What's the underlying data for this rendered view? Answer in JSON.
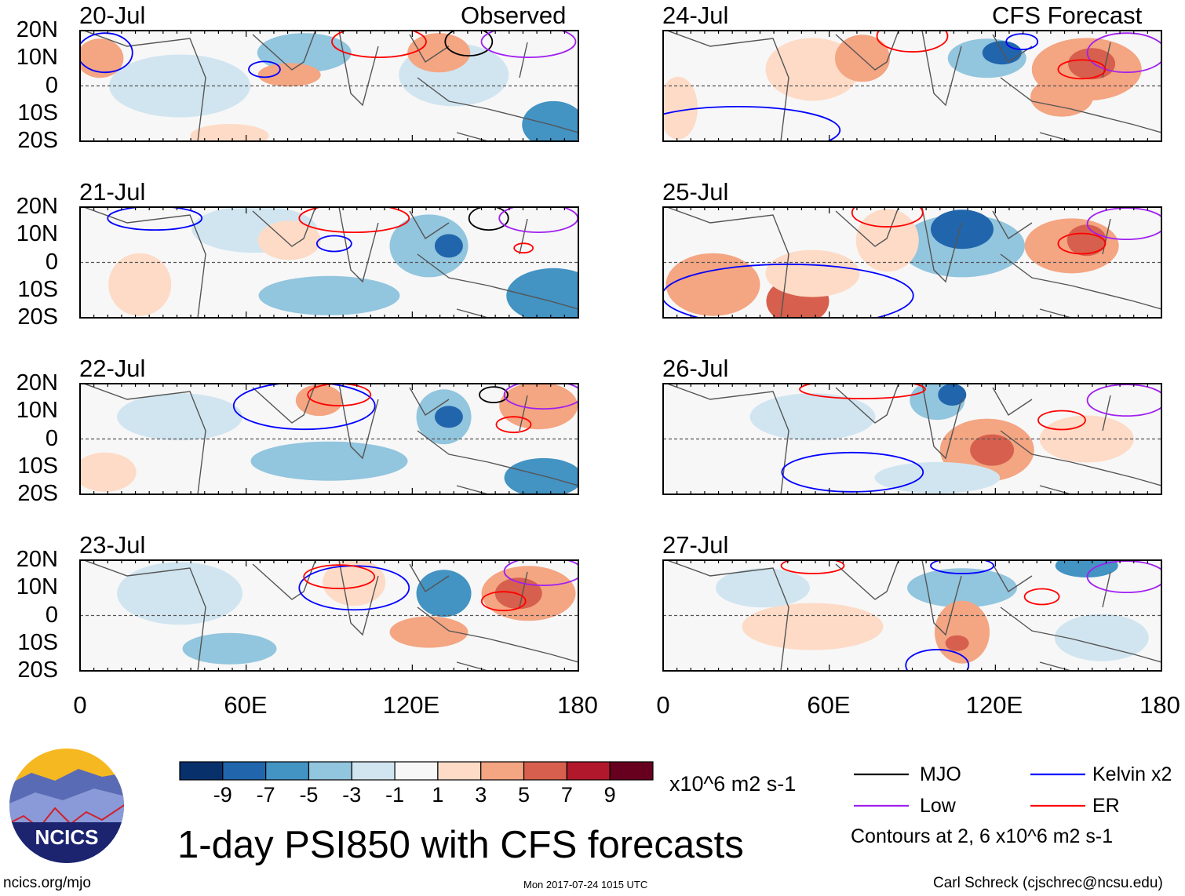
{
  "figure": {
    "title": "1-day PSI850 with CFS forecasts",
    "units": "x10^6 m2 s-1",
    "footer_left": "ncics.org/mjo",
    "footer_center": "Mon 2017-07-24 1015 UTC",
    "footer_right": "Carl Schreck (cjschrec@ncsu.edu)",
    "logo_text": "NCICS"
  },
  "panels_left": {
    "header_right": "Observed",
    "dates": [
      "20-Jul",
      "21-Jul",
      "22-Jul",
      "23-Jul"
    ]
  },
  "panels_right": {
    "header_right": "CFS Forecast",
    "dates": [
      "24-Jul",
      "25-Jul",
      "26-Jul",
      "27-Jul"
    ]
  },
  "lat_labels": [
    "20N",
    "10N",
    "0",
    "10S",
    "20S"
  ],
  "lon_labels": [
    "0",
    "60E",
    "120E",
    "180"
  ],
  "colorbar": {
    "labels": [
      "-9",
      "-7",
      "-5",
      "-3",
      "-1",
      "1",
      "3",
      "5",
      "7",
      "9"
    ],
    "colors": [
      "#08306b",
      "#2166ac",
      "#4393c3",
      "#92c5de",
      "#d1e5f0",
      "#f7f7f7",
      "#fddbc7",
      "#f4a582",
      "#d6604d",
      "#b2182b",
      "#67001f"
    ]
  },
  "legend": {
    "items": [
      {
        "label": "MJO",
        "color": "#000000"
      },
      {
        "label": "Kelvin x2",
        "color": "#0000ff"
      },
      {
        "label": "Low",
        "color": "#a020f0"
      },
      {
        "label": "ER",
        "color": "#ff0000"
      }
    ],
    "note": "Contours at 2, 6 x10^6 m2 s-1"
  }
}
